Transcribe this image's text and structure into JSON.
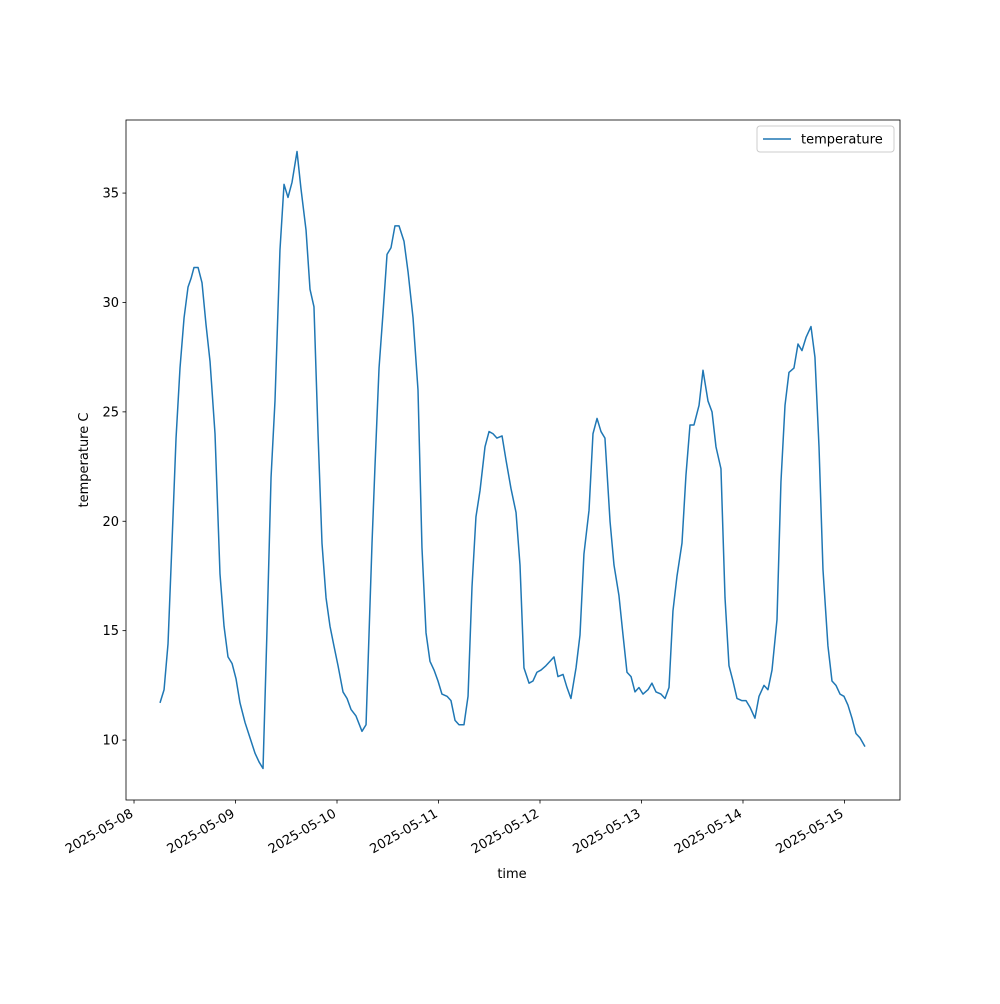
{
  "chart_data": {
    "type": "line",
    "xlabel": "time",
    "ylabel": "temperature C",
    "x": [
      0.256,
      0.296,
      0.335,
      0.374,
      0.414,
      0.453,
      0.493,
      0.532,
      0.562,
      0.591,
      0.631,
      0.67,
      0.709,
      0.749,
      0.798,
      0.847,
      0.887,
      0.926,
      0.966,
      1.005,
      1.044,
      1.094,
      1.143,
      1.192,
      1.232,
      1.271,
      1.31,
      1.35,
      1.389,
      1.438,
      1.478,
      1.517,
      1.557,
      1.606,
      1.645,
      1.695,
      1.734,
      1.773,
      1.813,
      1.852,
      1.892,
      1.931,
      1.97,
      2.01,
      2.059,
      2.099,
      2.138,
      2.187,
      2.246,
      2.286,
      2.345,
      2.374,
      2.414,
      2.453,
      2.493,
      2.532,
      2.571,
      2.611,
      2.66,
      2.7,
      2.749,
      2.798,
      2.837,
      2.877,
      2.916,
      2.956,
      2.995,
      3.034,
      3.084,
      3.123,
      3.163,
      3.202,
      3.251,
      3.291,
      3.33,
      3.369,
      3.409,
      3.458,
      3.498,
      3.537,
      3.576,
      3.626,
      3.665,
      3.714,
      3.764,
      3.803,
      3.842,
      3.892,
      3.931,
      3.97,
      4.01,
      4.059,
      4.099,
      4.138,
      4.177,
      4.227,
      4.266,
      4.305,
      4.355,
      4.394,
      4.433,
      4.483,
      4.522,
      4.562,
      4.601,
      4.64,
      4.69,
      4.729,
      4.778,
      4.818,
      4.857,
      4.897,
      4.936,
      4.975,
      5.015,
      5.064,
      5.103,
      5.143,
      5.192,
      5.232,
      5.271,
      5.31,
      5.35,
      5.399,
      5.438,
      5.478,
      5.517,
      5.567,
      5.606,
      5.655,
      5.695,
      5.734,
      5.783,
      5.823,
      5.862,
      5.901,
      5.941,
      5.99,
      6.03,
      6.069,
      6.118,
      6.158,
      6.207,
      6.246,
      6.286,
      6.335,
      6.374,
      6.414,
      6.453,
      6.502,
      6.542,
      6.581,
      6.621,
      6.67,
      6.709,
      6.749,
      6.788,
      6.837,
      6.877,
      6.916,
      6.956,
      6.995,
      7.034,
      7.074,
      7.113,
      7.153,
      7.202
    ],
    "series": [
      {
        "name": "temperature",
        "color": "#1f77b4",
        "values": [
          11.7,
          12.3,
          14.4,
          19,
          23.8,
          27,
          29.3,
          30.7,
          31.1,
          31.6,
          31.6,
          30.9,
          29,
          27.3,
          24,
          17.6,
          15.2,
          13.8,
          13.5,
          12.8,
          11.7,
          10.8,
          10.1,
          9.4,
          9,
          8.7,
          15,
          22,
          25.5,
          32.4,
          35.4,
          34.8,
          35.5,
          36.9,
          35.2,
          33.3,
          30.6,
          29.8,
          24,
          19,
          16.5,
          15.2,
          14.3,
          13.4,
          12.2,
          11.9,
          11.4,
          11.1,
          10.4,
          10.7,
          19,
          22.5,
          27,
          29.5,
          32.2,
          32.5,
          33.5,
          33.5,
          32.8,
          31.4,
          29.3,
          26,
          18.8,
          14.9,
          13.6,
          13.2,
          12.7,
          12.1,
          12,
          11.8,
          10.9,
          10.7,
          10.7,
          12,
          17,
          20.2,
          21.4,
          23.4,
          24.1,
          24,
          23.8,
          23.9,
          22.8,
          21.5,
          20.4,
          18,
          13.3,
          12.6,
          12.7,
          13.1,
          13.2,
          13.4,
          13.6,
          13.8,
          12.9,
          13,
          12.4,
          11.9,
          13.3,
          14.8,
          18.5,
          20.5,
          24,
          24.7,
          24.1,
          23.8,
          20,
          18,
          16.6,
          14.8,
          13.1,
          12.9,
          12.2,
          12.4,
          12.1,
          12.3,
          12.6,
          12.2,
          12.1,
          11.9,
          12.4,
          15.9,
          17.5,
          19,
          22.1,
          24.4,
          24.4,
          25.3,
          26.9,
          25.5,
          25,
          23.4,
          22.4,
          16.5,
          13.4,
          12.7,
          11.9,
          11.8,
          11.8,
          11.5,
          11,
          12,
          12.5,
          12.3,
          13.2,
          15.5,
          21.8,
          25.3,
          26.8,
          27,
          28.1,
          27.8,
          28.4,
          28.9,
          27.5,
          23.4,
          17.8,
          14.3,
          12.7,
          12.5,
          12.1,
          12,
          11.6,
          11,
          10.3,
          10.1,
          9.7
        ]
      }
    ],
    "xlim": [
      -0.079,
      7.547
    ],
    "xticks": [
      {
        "value": 0,
        "label": "2025-05-08"
      },
      {
        "value": 1,
        "label": "2025-05-09"
      },
      {
        "value": 2,
        "label": "2025-05-10"
      },
      {
        "value": 3,
        "label": "2025-05-11"
      },
      {
        "value": 4,
        "label": "2025-05-12"
      },
      {
        "value": 5,
        "label": "2025-05-13"
      },
      {
        "value": 6,
        "label": "2025-05-14"
      },
      {
        "value": 7,
        "label": "2025-05-15"
      }
    ],
    "ylim": [
      7.26,
      38.34
    ],
    "yticks": [
      10,
      15,
      20,
      25,
      30,
      35
    ],
    "legend": "upper right"
  }
}
